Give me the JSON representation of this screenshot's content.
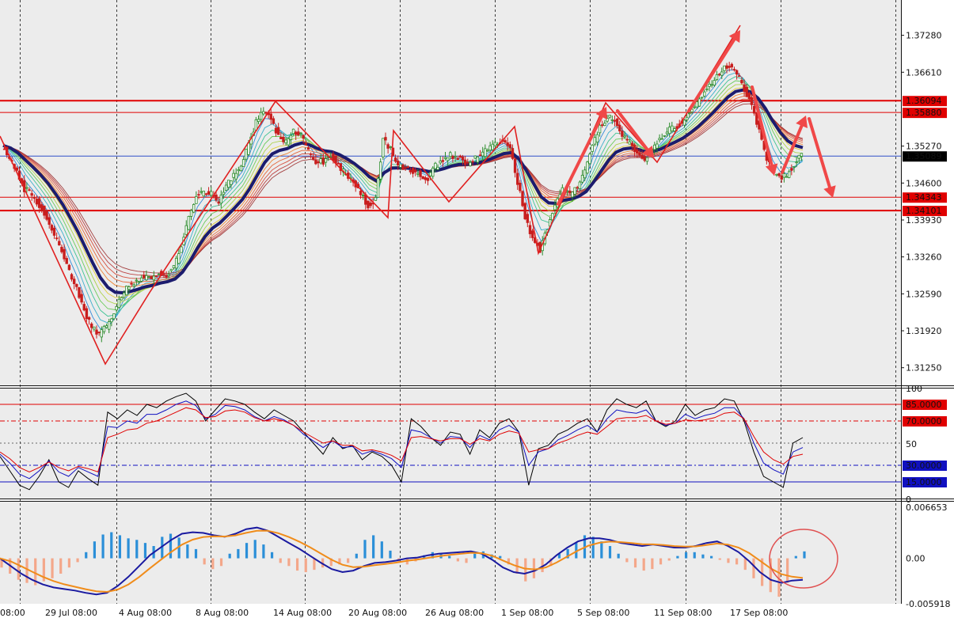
{
  "chart_data": [
    {
      "type": "candlestick",
      "pane": "price",
      "price_ticks": [
        "1.37280",
        "1.36610",
        "1.35270",
        "1.34600",
        "1.33930",
        "1.33260",
        "1.32590",
        "1.31920",
        "1.31250"
      ],
      "price_tick_values": [
        1.3728,
        1.3661,
        1.3527,
        1.346,
        1.3393,
        1.3326,
        1.3259,
        1.3192,
        1.3125
      ],
      "ylim": [
        1.3093,
        1.3792
      ],
      "time_labels": [
        "08:00",
        "29 Jul 08:00",
        "4 Aug 08:00",
        "8 Aug 08:00",
        "14 Aug 08:00",
        "20 Aug 08:00",
        "26 Aug 08:00",
        "1 Sep 08:00",
        "5 Sep 08:00",
        "11 Sep 08:00",
        "17 Sep 08:00"
      ],
      "horizontal_levels": [
        {
          "label": "1.36094",
          "value": 1.36094,
          "color": "#e00000"
        },
        {
          "label": "1.35880",
          "value": 1.3588,
          "color": "#e00000"
        },
        {
          "label": "1.34343",
          "value": 1.34343,
          "color": "#e00000"
        },
        {
          "label": "1.34101",
          "value": 1.34101,
          "color": "#e00000"
        }
      ],
      "current_price": {
        "label": "1.35089",
        "value": 1.35089
      },
      "close_path": [
        1.3528,
        1.3505,
        1.3478,
        1.345,
        1.3438,
        1.342,
        1.3398,
        1.3365,
        1.334,
        1.33,
        1.3272,
        1.323,
        1.32,
        1.3185,
        1.32,
        1.3225,
        1.3258,
        1.3272,
        1.3283,
        1.329,
        1.3285,
        1.3295,
        1.3292,
        1.3305,
        1.3348,
        1.3398,
        1.3437,
        1.3445,
        1.344,
        1.3425,
        1.3455,
        1.3472,
        1.349,
        1.353,
        1.357,
        1.359,
        1.3575,
        1.3545,
        1.3535,
        1.3555,
        1.3548,
        1.3515,
        1.3498,
        1.35,
        1.351,
        1.349,
        1.3475,
        1.346,
        1.344,
        1.342,
        1.3432,
        1.354,
        1.352,
        1.349,
        1.3485,
        1.348,
        1.3475,
        1.347,
        1.349,
        1.35,
        1.351,
        1.3505,
        1.3495,
        1.35,
        1.351,
        1.352,
        1.353,
        1.3535,
        1.3522,
        1.346,
        1.34,
        1.336,
        1.334,
        1.338,
        1.342,
        1.345,
        1.344,
        1.3455,
        1.348,
        1.353,
        1.356,
        1.358,
        1.3575,
        1.3545,
        1.353,
        1.351,
        1.35,
        1.352,
        1.354,
        1.3555,
        1.356,
        1.357,
        1.359,
        1.3605,
        1.3625,
        1.364,
        1.366,
        1.3672,
        1.3665,
        1.364,
        1.361,
        1.357,
        1.352,
        1.348,
        1.347,
        1.3475,
        1.3495,
        1.3509
      ],
      "annotations": [
        "zigzag line",
        "down arrows",
        "up arrows"
      ]
    },
    {
      "type": "line",
      "pane": "stochastic",
      "ticks": [
        "100",
        "50",
        "0"
      ],
      "tick_values": [
        100,
        50,
        0
      ],
      "levels": [
        {
          "label": "85.0000",
          "value": 85,
          "color": "#e00000"
        },
        {
          "label": "70.0000",
          "value": 70,
          "color": "#e00000"
        },
        {
          "label": "30.0000",
          "value": 30,
          "color": "#1010c0"
        },
        {
          "label": "15.0000",
          "value": 15,
          "color": "#1010c0"
        }
      ],
      "series": [
        {
          "color": "#000000",
          "values": [
            38,
            25,
            12,
            8,
            20,
            35,
            15,
            10,
            25,
            18,
            12,
            78,
            72,
            80,
            75,
            85,
            82,
            88,
            92,
            95,
            88,
            70,
            80,
            90,
            88,
            85,
            78,
            72,
            80,
            75,
            70,
            60,
            50,
            40,
            55,
            45,
            48,
            35,
            42,
            38,
            30,
            15,
            72,
            65,
            55,
            48,
            60,
            58,
            40,
            62,
            55,
            68,
            72,
            60,
            12,
            45,
            48,
            58,
            62,
            68,
            72,
            60,
            80,
            90,
            85,
            82,
            88,
            70,
            65,
            70,
            85,
            75,
            80,
            82,
            90,
            88,
            70,
            42,
            20,
            15,
            10,
            50,
            55
          ]
        },
        {
          "color": "#1010c0",
          "values": [
            40,
            32,
            22,
            18,
            25,
            34,
            24,
            20,
            28,
            24,
            20,
            65,
            64,
            70,
            68,
            76,
            76,
            80,
            85,
            88,
            84,
            72,
            76,
            84,
            83,
            80,
            74,
            70,
            74,
            71,
            66,
            58,
            52,
            46,
            52,
            46,
            47,
            40,
            43,
            40,
            36,
            28,
            62,
            60,
            55,
            50,
            56,
            55,
            46,
            57,
            53,
            62,
            66,
            60,
            30,
            42,
            45,
            53,
            57,
            62,
            66,
            60,
            72,
            80,
            78,
            77,
            80,
            70,
            66,
            68,
            76,
            72,
            75,
            77,
            82,
            82,
            72,
            50,
            32,
            26,
            22,
            42,
            46
          ]
        },
        {
          "color": "#e00000",
          "values": [
            42,
            36,
            28,
            24,
            28,
            33,
            28,
            25,
            29,
            27,
            24,
            55,
            58,
            62,
            63,
            68,
            70,
            74,
            78,
            82,
            80,
            73,
            74,
            79,
            80,
            78,
            73,
            70,
            72,
            70,
            66,
            60,
            55,
            50,
            52,
            48,
            48,
            43,
            44,
            42,
            39,
            34,
            55,
            56,
            54,
            52,
            54,
            54,
            49,
            54,
            52,
            58,
            61,
            59,
            42,
            44,
            45,
            50,
            53,
            57,
            60,
            58,
            65,
            72,
            73,
            73,
            75,
            70,
            67,
            68,
            71,
            70,
            71,
            73,
            77,
            78,
            72,
            56,
            42,
            35,
            31,
            38,
            40
          ]
        }
      ]
    },
    {
      "type": "bar+line",
      "pane": "macd",
      "ticks": [
        "0.006653",
        "0.00",
        "-0.005918"
      ],
      "tick_values": [
        0.006653,
        0.0,
        -0.005918
      ],
      "histogram": [
        -1.2,
        -2.0,
        -2.8,
        -3.2,
        -3.5,
        -3.0,
        -2.6,
        -2.0,
        -1.2,
        -0.5,
        0.8,
        2.2,
        3.1,
        3.4,
        3.0,
        2.6,
        2.4,
        2.0,
        1.6,
        2.8,
        3.2,
        2.7,
        1.8,
        1.2,
        -0.8,
        -1.4,
        -1.0,
        0.6,
        1.2,
        2.0,
        2.4,
        1.8,
        0.8,
        -0.6,
        -1.0,
        -1.6,
        -1.8,
        -1.5,
        -1.2,
        -1.0,
        -0.8,
        -0.6,
        0.6,
        2.4,
        3.0,
        2.2,
        1.0,
        -0.5,
        -0.8,
        -0.4,
        0.4,
        0.8,
        0.6,
        0.3,
        -0.4,
        -0.6,
        0.6,
        0.9,
        0.5,
        0.3,
        -0.8,
        -2.0,
        -3.0,
        -2.6,
        -1.8,
        -1.0,
        0.6,
        1.2,
        2.0,
        3.0,
        2.8,
        2.2,
        1.6,
        0.6,
        -0.5,
        -1.2,
        -1.6,
        -1.4,
        -0.8,
        -0.3,
        0.3,
        0.8,
        0.8,
        0.5,
        0.3,
        -0.2,
        -0.6,
        -0.8,
        -1.5,
        -2.6,
        -3.6,
        -4.4,
        -5.0,
        -3.2,
        0.3,
        0.9
      ],
      "macd_line": [
        0.0,
        -1.0,
        -2.0,
        -2.8,
        -3.4,
        -3.8,
        -4.0,
        -4.2,
        -4.5,
        -4.7,
        -4.5,
        -3.6,
        -2.4,
        -1.0,
        0.4,
        1.4,
        2.4,
        3.2,
        3.4,
        3.3,
        3.0,
        2.8,
        3.2,
        3.8,
        4.0,
        3.6,
        2.8,
        2.0,
        1.2,
        0.3,
        -0.6,
        -1.4,
        -1.8,
        -1.6,
        -1.0,
        -0.6,
        -0.5,
        -0.3,
        0.0,
        0.1,
        0.4,
        0.6,
        0.7,
        0.8,
        0.9,
        0.6,
        -0.2,
        -1.2,
        -1.8,
        -2.0,
        -1.6,
        -0.8,
        0.4,
        1.4,
        2.2,
        2.6,
        2.6,
        2.4,
        2.0,
        1.8,
        1.6,
        1.8,
        1.6,
        1.4,
        1.4,
        1.6,
        2.0,
        2.2,
        1.6,
        0.8,
        -0.4,
        -1.8,
        -2.8,
        -3.2,
        -2.9,
        -2.8
      ]
    }
  ]
}
